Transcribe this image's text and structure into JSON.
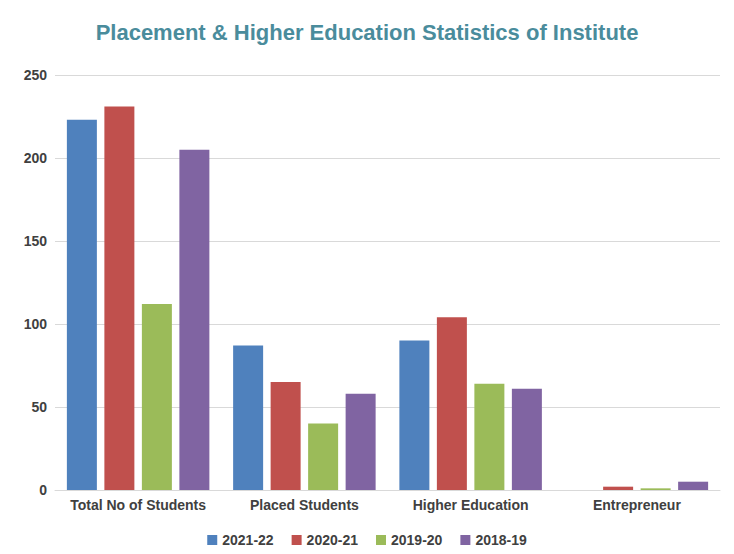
{
  "chart_data": {
    "type": "bar",
    "title": "Placement & Higher Education Statistics of Institute",
    "categories": [
      "Total No of Students",
      "Placed Students",
      "Higher Education",
      "Entrepreneur"
    ],
    "series": [
      {
        "name": "2021-22",
        "color": "#4f81bd",
        "values": [
          223,
          87,
          90,
          0
        ]
      },
      {
        "name": "2020-21",
        "color": "#c0504d",
        "values": [
          231,
          65,
          104,
          2
        ]
      },
      {
        "name": "2019-20",
        "color": "#9bbb59",
        "values": [
          112,
          40,
          64,
          1
        ]
      },
      {
        "name": "2018-19",
        "color": "#8064a2",
        "values": [
          205,
          58,
          61,
          5
        ]
      }
    ],
    "ylim": [
      0,
      250
    ],
    "yticks": [
      0,
      50,
      100,
      150,
      200,
      250
    ],
    "grid": true,
    "legend": "bottom"
  }
}
